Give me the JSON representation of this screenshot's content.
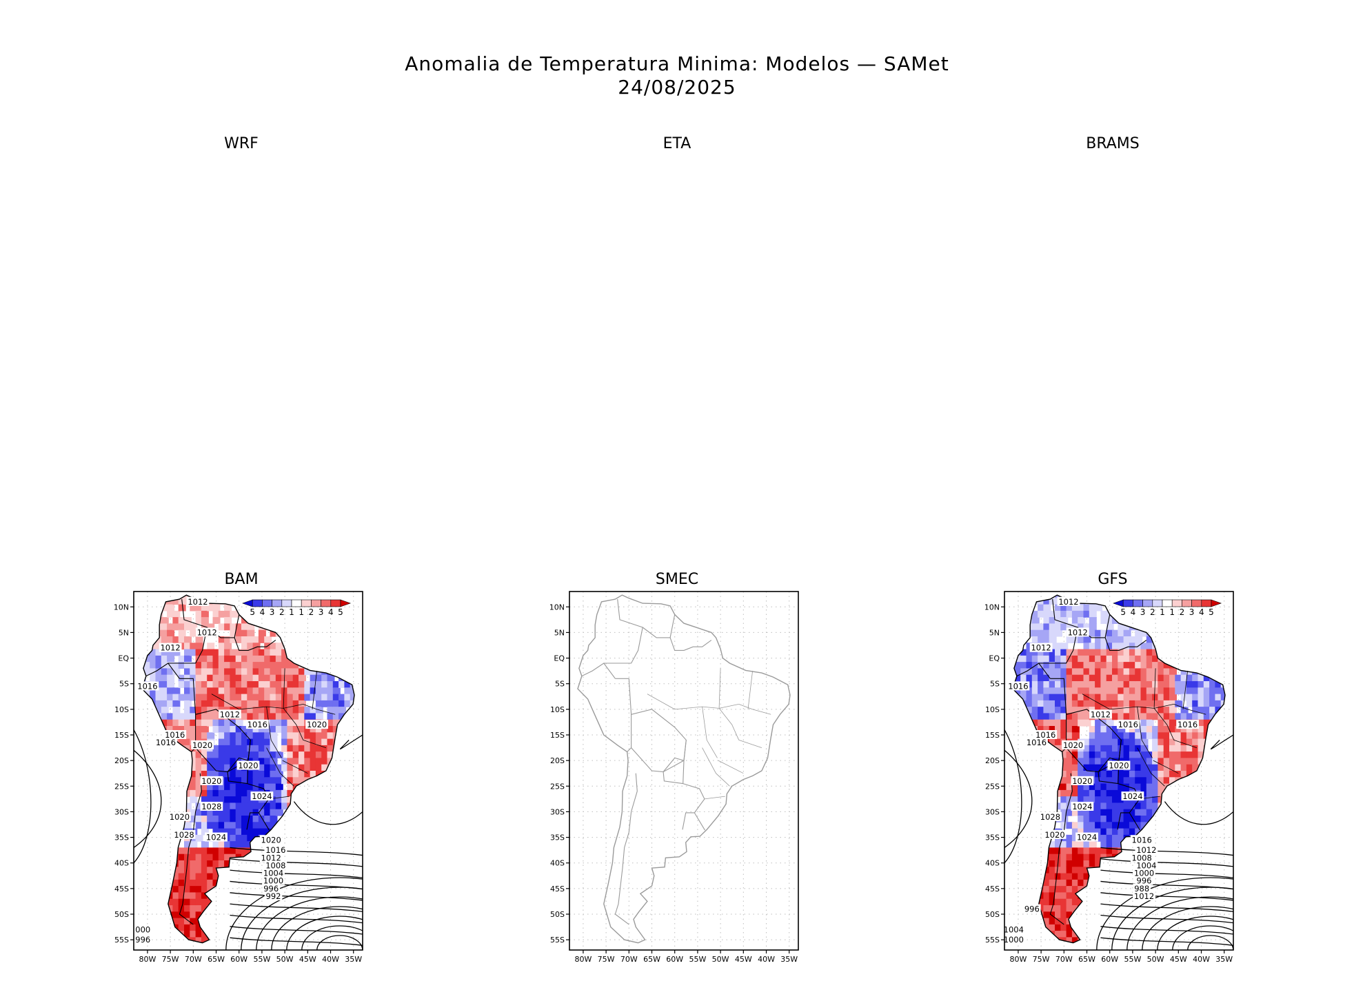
{
  "figure": {
    "title_line1": "Anomalia de Temperatura Minima: Modelos — SAMet",
    "title_line2": "24/08/2025"
  },
  "panels": [
    {
      "id": "wrf",
      "label": "WRF",
      "has_map": false
    },
    {
      "id": "eta",
      "label": "ETA",
      "has_map": false
    },
    {
      "id": "brams",
      "label": "BRAMS",
      "has_map": false
    },
    {
      "id": "bam",
      "label": "BAM",
      "has_map": true,
      "field": "anomaly",
      "isobar_labels": [
        "1012",
        "1012",
        "1012",
        "1016",
        "1012",
        "1016",
        "1016",
        "1016",
        "1020",
        "1020",
        "1020",
        "1020",
        "1024",
        "1028",
        "1020",
        "1024",
        "1028",
        "1020",
        "1016",
        "1012",
        "1008",
        "1004",
        "1000",
        "996",
        "992",
        "000",
        "996"
      ]
    },
    {
      "id": "smec",
      "label": "SMEC",
      "has_map": true,
      "field": "none",
      "isobar_labels": []
    },
    {
      "id": "gfs",
      "label": "GFS",
      "has_map": true,
      "field": "anomaly",
      "isobar_labels": [
        "1012",
        "1012",
        "1012",
        "1016",
        "1012",
        "1016",
        "1016",
        "1016",
        "1020",
        "1016",
        "1020",
        "1020",
        "1024",
        "1024",
        "1028",
        "1024",
        "1020",
        "1016",
        "1012",
        "1008",
        "1004",
        "1000",
        "996",
        "988",
        "1012",
        "1004",
        "1000",
        "996"
      ]
    }
  ],
  "axes": {
    "lat_ticks": [
      "10N",
      "5N",
      "EQ",
      "5S",
      "10S",
      "15S",
      "20S",
      "25S",
      "30S",
      "35S",
      "40S",
      "45S",
      "50S",
      "55S"
    ],
    "lon_ticks": [
      "80W",
      "75W",
      "70W",
      "65W",
      "60W",
      "55W",
      "50W",
      "45W",
      "40W",
      "35W"
    ],
    "lon_range": [
      -83,
      -33
    ],
    "lat_range": [
      -57,
      13
    ]
  },
  "colorbar": {
    "labels": [
      "5",
      "4",
      "3",
      "2",
      "1",
      "1",
      "2",
      "3",
      "4",
      "5"
    ],
    "colors": [
      "#0a0ad8",
      "#3a3ae8",
      "#6f6ff0",
      "#a6a6f5",
      "#d8d8fb",
      "#ffffff",
      "#fbd0d0",
      "#f5a0a0",
      "#f06a6a",
      "#e83535",
      "#d00000"
    ]
  },
  "colors": {
    "cold": "#1010d8",
    "warm": "#e00000",
    "coast_smec": "#9a9a9a",
    "border": "#000000"
  }
}
